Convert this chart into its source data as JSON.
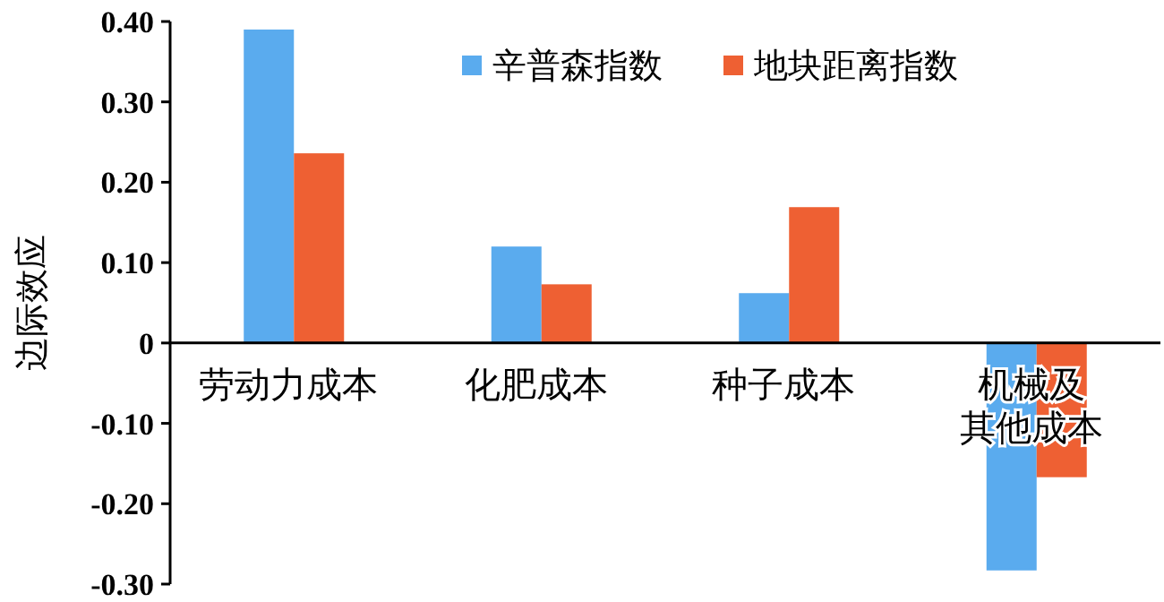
{
  "chart_data": {
    "type": "bar",
    "ylabel": "边际效应",
    "categories": [
      "劳动力成本",
      "化肥成本",
      "种子成本",
      "机械及其他成本"
    ],
    "series": [
      {
        "name": "辛普森指数",
        "color": "#5aabee",
        "values": [
          0.39,
          0.12,
          0.062,
          -0.283
        ]
      },
      {
        "name": "地块距离指数",
        "color": "#ee6033",
        "values": [
          0.236,
          0.073,
          0.169,
          -0.167
        ]
      }
    ],
    "ylim": [
      -0.3,
      0.4
    ],
    "yticks": [
      {
        "value": -0.3,
        "label": "-0.30"
      },
      {
        "value": -0.2,
        "label": "-0.20"
      },
      {
        "value": -0.1,
        "label": "-0.10"
      },
      {
        "value": 0,
        "label": "0"
      },
      {
        "value": 0.1,
        "label": "0.10"
      },
      {
        "value": 0.2,
        "label": "0.20"
      },
      {
        "value": 0.3,
        "label": "0.30"
      },
      {
        "value": 0.4,
        "label": "0.40"
      }
    ],
    "legend": "top",
    "grid": false
  }
}
